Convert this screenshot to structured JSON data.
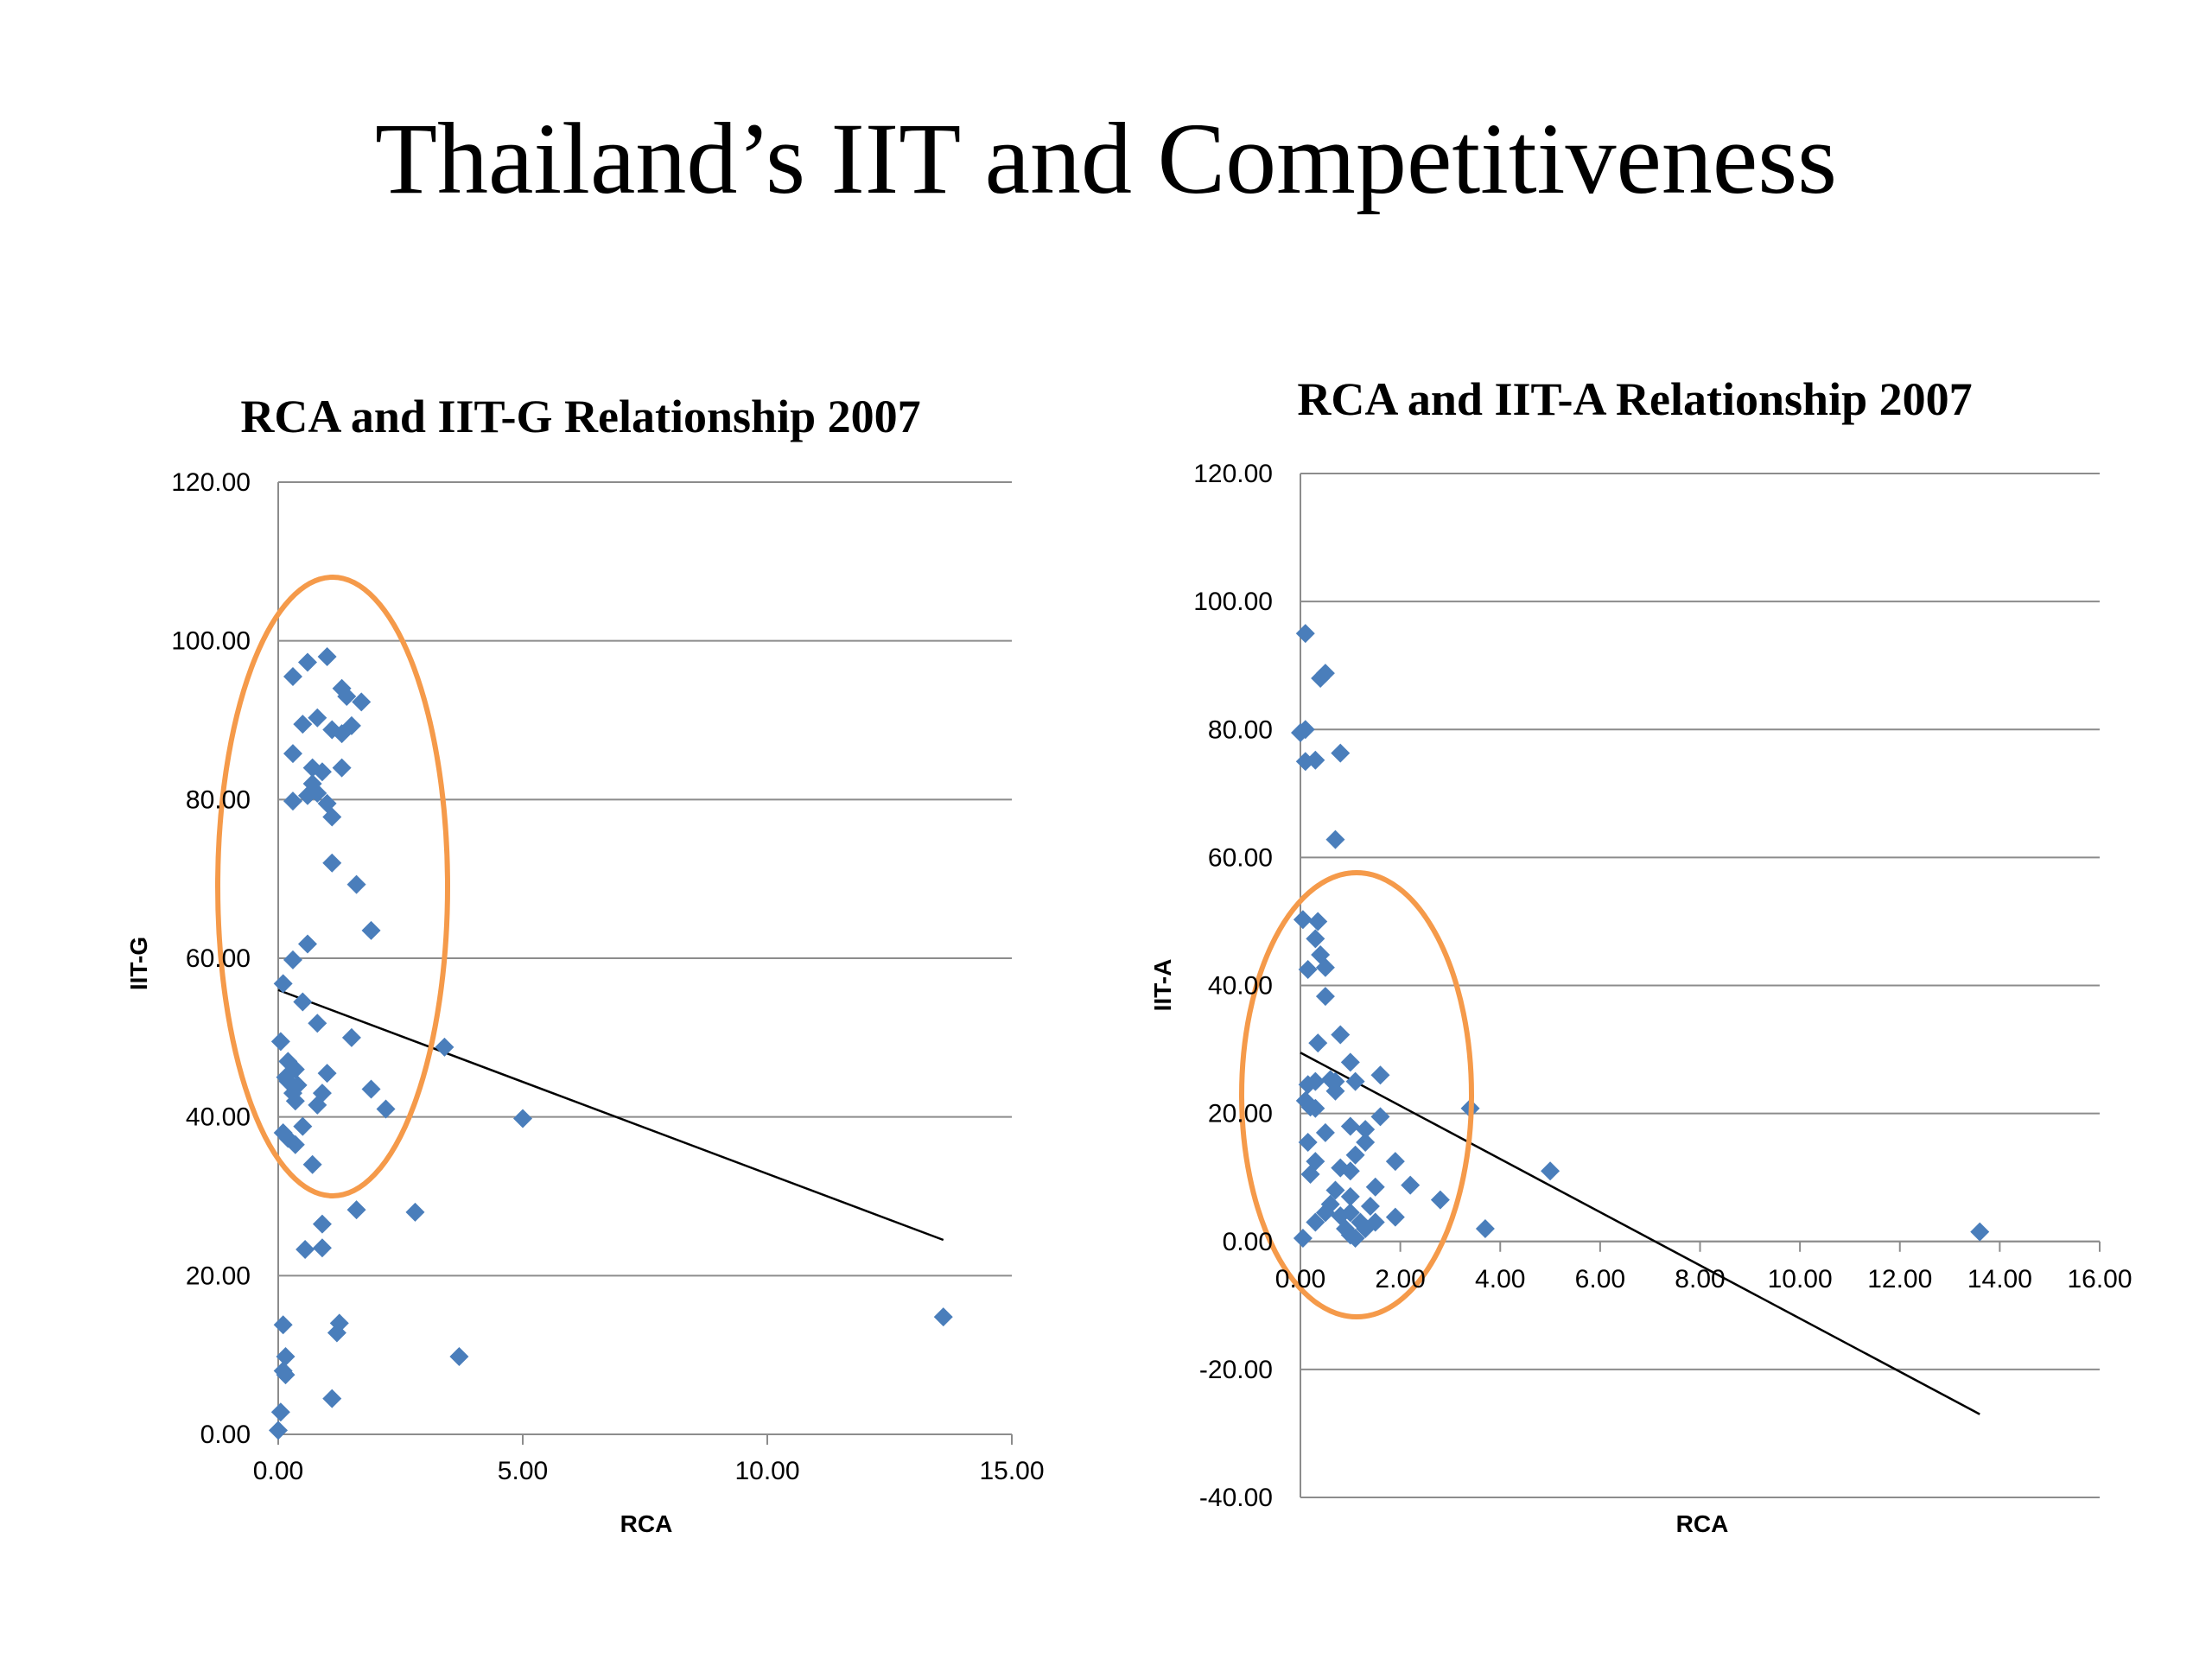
{
  "slide": {
    "title": "Thailand’s IIT and Competitiveness"
  },
  "colors": {
    "marker": "#4a7ebb",
    "circle": "#f59a4a",
    "trend": "#000000",
    "grid": "#8c8c8c"
  },
  "chart_data": [
    {
      "type": "scatter",
      "title": "RCA and IIT-G Relationship 2007",
      "xlabel": "RCA",
      "ylabel": "IIT-G",
      "xlim": [
        0,
        15
      ],
      "ylim": [
        0,
        120
      ],
      "xticks": [
        0,
        5,
        10,
        15
      ],
      "yticks": [
        0,
        20,
        40,
        60,
        80,
        100,
        120
      ],
      "xtick_labels": [
        "0.00",
        "5.00",
        "10.00",
        "15.00"
      ],
      "ytick_labels": [
        "0.00",
        "20.00",
        "40.00",
        "60.00",
        "80.00",
        "100.00",
        "120.00"
      ],
      "grid": "horizontal",
      "legend": "none",
      "points": [
        [
          0.3,
          95.5
        ],
        [
          0.6,
          97.3
        ],
        [
          1.0,
          98.0
        ],
        [
          0.5,
          89.5
        ],
        [
          0.8,
          90.3
        ],
        [
          1.3,
          94.0
        ],
        [
          1.4,
          93.0
        ],
        [
          1.7,
          92.3
        ],
        [
          1.1,
          88.8
        ],
        [
          1.3,
          88.3
        ],
        [
          1.5,
          89.3
        ],
        [
          0.3,
          85.8
        ],
        [
          0.7,
          84.0
        ],
        [
          0.9,
          83.5
        ],
        [
          1.3,
          84.0
        ],
        [
          0.3,
          79.8
        ],
        [
          0.6,
          80.5
        ],
        [
          0.7,
          82.0
        ],
        [
          0.8,
          80.8
        ],
        [
          1.0,
          79.5
        ],
        [
          1.1,
          77.8
        ],
        [
          1.1,
          72.0
        ],
        [
          1.6,
          69.3
        ],
        [
          1.9,
          63.5
        ],
        [
          0.6,
          61.8
        ],
        [
          0.3,
          59.8
        ],
        [
          0.1,
          56.8
        ],
        [
          0.5,
          54.5
        ],
        [
          0.8,
          51.8
        ],
        [
          1.5,
          50.0
        ],
        [
          0.05,
          49.5
        ],
        [
          3.4,
          48.8
        ],
        [
          0.2,
          47.0
        ],
        [
          0.35,
          46.0
        ],
        [
          0.15,
          45.0
        ],
        [
          1.0,
          45.5
        ],
        [
          0.2,
          44.5
        ],
        [
          0.4,
          44.0
        ],
        [
          0.3,
          43.0
        ],
        [
          0.35,
          42.0
        ],
        [
          0.9,
          43.0
        ],
        [
          0.8,
          41.5
        ],
        [
          1.9,
          43.5
        ],
        [
          2.2,
          41.0
        ],
        [
          5.0,
          39.8
        ],
        [
          0.5,
          38.8
        ],
        [
          0.1,
          38.0
        ],
        [
          0.2,
          37.3
        ],
        [
          0.35,
          36.5
        ],
        [
          0.7,
          34.0
        ],
        [
          1.6,
          28.3
        ],
        [
          2.8,
          28.0
        ],
        [
          0.9,
          26.5
        ],
        [
          0.55,
          23.3
        ],
        [
          0.9,
          23.5
        ],
        [
          0.1,
          13.8
        ],
        [
          1.25,
          14.0
        ],
        [
          1.2,
          12.8
        ],
        [
          0.15,
          9.8
        ],
        [
          3.7,
          9.8
        ],
        [
          0.1,
          8.0
        ],
        [
          0.15,
          7.5
        ],
        [
          1.1,
          4.5
        ],
        [
          0.05,
          2.8
        ],
        [
          0.0,
          0.5
        ],
        [
          13.6,
          14.8
        ]
      ],
      "trendline": {
        "x": [
          0,
          13.6
        ],
        "y": [
          56.0,
          24.5
        ]
      }
    },
    {
      "type": "scatter",
      "title": "RCA and IIT-A Relationship 2007",
      "xlabel": "RCA",
      "ylabel": "IIT-A",
      "xlim": [
        0,
        16
      ],
      "ylim": [
        -40,
        120
      ],
      "xticks": [
        0,
        2,
        4,
        6,
        8,
        10,
        12,
        14,
        16
      ],
      "yticks": [
        -40,
        -20,
        0,
        20,
        40,
        60,
        80,
        100,
        120
      ],
      "xtick_labels": [
        "0.00",
        "2.00",
        "4.00",
        "6.00",
        "8.00",
        "10.00",
        "12.00",
        "14.00",
        "16.00"
      ],
      "ytick_labels": [
        "-40.00",
        "-20.00",
        "0.00",
        "20.00",
        "40.00",
        "60.00",
        "80.00",
        "100.00",
        "120.00"
      ],
      "grid": "horizontal",
      "legend": "none",
      "points": [
        [
          0.1,
          95.0
        ],
        [
          0.4,
          88.0
        ],
        [
          0.5,
          88.8
        ],
        [
          0.0,
          79.5
        ],
        [
          0.1,
          80.0
        ],
        [
          0.8,
          76.3
        ],
        [
          0.1,
          75.0
        ],
        [
          0.3,
          75.2
        ],
        [
          0.7,
          62.8
        ],
        [
          0.05,
          50.3
        ],
        [
          0.35,
          50.0
        ],
        [
          0.3,
          47.3
        ],
        [
          0.4,
          44.8
        ],
        [
          0.15,
          42.5
        ],
        [
          0.5,
          42.8
        ],
        [
          0.5,
          38.3
        ],
        [
          0.8,
          32.3
        ],
        [
          0.35,
          31.0
        ],
        [
          1.0,
          28.0
        ],
        [
          1.6,
          26.0
        ],
        [
          0.6,
          25.3
        ],
        [
          0.15,
          24.5
        ],
        [
          0.3,
          25.0
        ],
        [
          0.7,
          25.0
        ],
        [
          1.1,
          25.0
        ],
        [
          0.7,
          23.5
        ],
        [
          0.1,
          22.0
        ],
        [
          0.2,
          21.0
        ],
        [
          0.3,
          20.8
        ],
        [
          3.4,
          20.8
        ],
        [
          1.6,
          19.5
        ],
        [
          1.0,
          18.0
        ],
        [
          0.5,
          17.0
        ],
        [
          1.3,
          17.5
        ],
        [
          0.15,
          15.5
        ],
        [
          1.3,
          15.5
        ],
        [
          1.1,
          13.5
        ],
        [
          1.9,
          12.5
        ],
        [
          0.3,
          12.5
        ],
        [
          0.8,
          11.5
        ],
        [
          1.0,
          11.0
        ],
        [
          5.0,
          11.0
        ],
        [
          0.2,
          10.5
        ],
        [
          2.2,
          8.8
        ],
        [
          1.5,
          8.5
        ],
        [
          0.7,
          8.0
        ],
        [
          1.0,
          7.0
        ],
        [
          2.8,
          6.5
        ],
        [
          0.6,
          5.8
        ],
        [
          1.4,
          5.5
        ],
        [
          0.5,
          4.5
        ],
        [
          0.8,
          4.0
        ],
        [
          1.0,
          4.5
        ],
        [
          1.9,
          3.8
        ],
        [
          0.3,
          3.0
        ],
        [
          1.2,
          3.0
        ],
        [
          1.5,
          3.0
        ],
        [
          0.9,
          2.0
        ],
        [
          1.3,
          2.0
        ],
        [
          3.7,
          2.0
        ],
        [
          1.0,
          1.0
        ],
        [
          1.1,
          0.5
        ],
        [
          0.05,
          0.5
        ],
        [
          13.6,
          1.5
        ]
      ],
      "trendline": {
        "x": [
          0,
          13.6
        ],
        "y": [
          29.5,
          -27.0
        ]
      }
    }
  ]
}
